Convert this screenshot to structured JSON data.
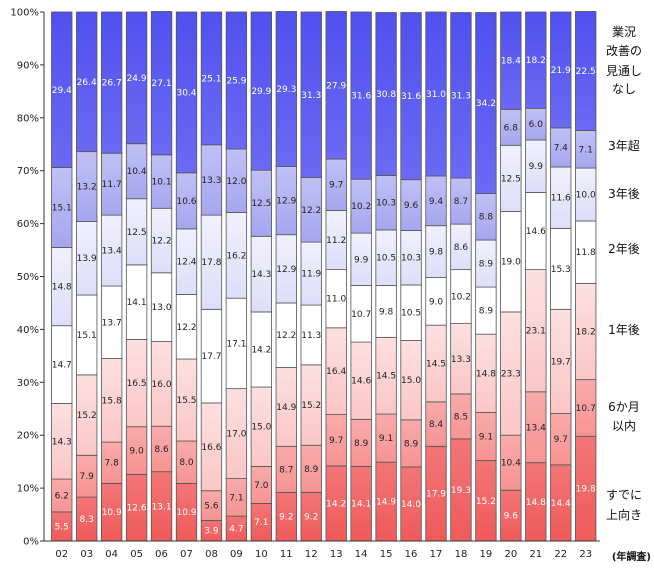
{
  "chart_data": {
    "type": "bar",
    "stacked": true,
    "percent": true,
    "categories": [
      "02",
      "03",
      "04",
      "05",
      "06",
      "07",
      "08",
      "09",
      "10",
      "11",
      "12",
      "13",
      "14",
      "15",
      "16",
      "17",
      "18",
      "19",
      "20",
      "21",
      "22",
      "23"
    ],
    "x_title": "(年調査)",
    "y_ticks": [
      "0%",
      "10%",
      "20%",
      "30%",
      "40%",
      "50%",
      "60%",
      "70%",
      "80%",
      "90%",
      "100%"
    ],
    "ylim": [
      0,
      100
    ],
    "grid": false,
    "legend_position": "right",
    "series": [
      {
        "name": "すでに\n上向き",
        "color": "#f06b6b",
        "label_color": "#ffffff",
        "values": [
          5.5,
          8.3,
          10.9,
          12.6,
          13.1,
          10.9,
          3.9,
          4.7,
          7.1,
          9.2,
          9.2,
          14.2,
          14.1,
          14.9,
          14.0,
          17.9,
          19.3,
          15.2,
          9.6,
          14.8,
          14.4,
          19.8
        ]
      },
      {
        "name": "6か月\n以内",
        "color": "#f8a0a0",
        "label_color": "#222222",
        "values": [
          6.2,
          7.9,
          7.8,
          9.0,
          8.6,
          8.0,
          5.6,
          7.1,
          7.0,
          8.7,
          8.9,
          9.7,
          8.9,
          9.1,
          8.9,
          8.4,
          8.5,
          9.1,
          10.4,
          13.4,
          9.7,
          10.7
        ]
      },
      {
        "name": "1年後",
        "color": "#fcd3d3",
        "label_color": "#222222",
        "values": [
          14.3,
          15.2,
          15.8,
          16.5,
          16.0,
          15.5,
          16.6,
          17.0,
          15.0,
          14.9,
          15.2,
          16.4,
          14.6,
          14.5,
          15.0,
          14.5,
          13.3,
          14.8,
          23.3,
          23.1,
          19.7,
          18.2
        ]
      },
      {
        "name": "2年後",
        "color": "#ffffff",
        "label_color": "#222222",
        "values": [
          14.7,
          15.1,
          13.7,
          14.1,
          13.0,
          12.2,
          17.7,
          17.1,
          14.2,
          12.2,
          11.3,
          11.0,
          10.7,
          9.8,
          10.5,
          9.0,
          10.2,
          8.9,
          19.0,
          14.6,
          15.3,
          11.8
        ]
      },
      {
        "name": "3年後",
        "color": "#e8e8fb",
        "label_color": "#222222",
        "values": [
          14.8,
          13.9,
          13.4,
          12.5,
          12.2,
          12.4,
          17.8,
          16.2,
          14.3,
          12.9,
          11.9,
          11.2,
          9.9,
          10.5,
          10.3,
          9.8,
          8.6,
          8.9,
          12.5,
          9.9,
          11.6,
          10.0
        ]
      },
      {
        "name": "3年超",
        "color": "#b4b4f3",
        "label_color": "#222222",
        "values": [
          15.1,
          13.2,
          11.7,
          10.4,
          10.1,
          10.6,
          13.3,
          12.0,
          12.5,
          12.9,
          12.2,
          9.7,
          10.2,
          10.3,
          9.6,
          9.4,
          8.7,
          8.8,
          6.8,
          6.0,
          7.4,
          7.1
        ]
      },
      {
        "name": "業況\n改善の\n見通し\nなし",
        "color": "#5b5bf2",
        "label_color": "#ffffff",
        "values": [
          29.4,
          26.4,
          26.7,
          24.9,
          27.1,
          30.4,
          25.1,
          25.9,
          29.9,
          29.3,
          31.3,
          27.9,
          31.6,
          30.8,
          31.6,
          31.0,
          31.3,
          34.2,
          18.4,
          18.2,
          21.9,
          22.5
        ]
      }
    ]
  }
}
